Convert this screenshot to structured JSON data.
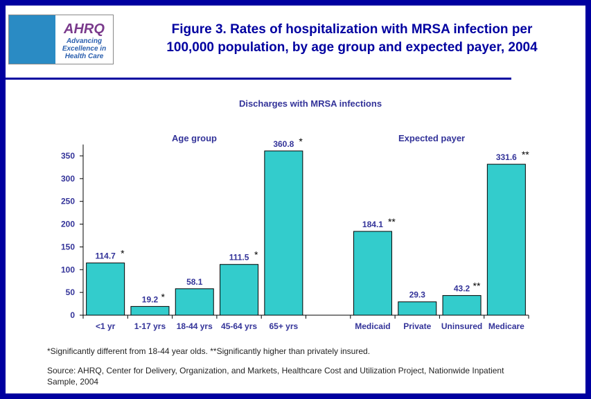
{
  "header": {
    "title_line1": "Figure 3. Rates of hospitalization with MRSA infection per",
    "title_line2": "100,000 population, by age group and expected payer, 2004",
    "logo_text": "AHRQ Advancing Excellence in Health Care",
    "logo_big": "AHRQ",
    "logo_tag": "Advancing Excellence in Health Care"
  },
  "chart_data": {
    "type": "bar",
    "title": "Discharges with MRSA infections",
    "groups": [
      {
        "label": "Age group",
        "categories": [
          "<1 yr",
          "1-17 yrs",
          "18-44 yrs",
          "45-64 yrs",
          "65+ yrs"
        ],
        "values": [
          114.7,
          19.2,
          58.1,
          111.5,
          360.8
        ],
        "labels": [
          "114.7",
          "19.2",
          "58.1",
          "111.5",
          "360.8"
        ],
        "marks": [
          "*",
          "*",
          "",
          "*",
          "*"
        ]
      },
      {
        "label": "Expected payer",
        "categories": [
          "Medicaid",
          "Private",
          "Uninsured",
          "Medicare"
        ],
        "values": [
          184.1,
          29.3,
          43.2,
          331.6
        ],
        "labels": [
          "184.1",
          "29.3",
          "43.2",
          "331.6"
        ],
        "marks": [
          "**",
          "",
          "**",
          "**"
        ]
      }
    ],
    "ylim": [
      0,
      375
    ],
    "yticks": [
      "0",
      "50",
      "100",
      "150",
      "200",
      "250",
      "300",
      "350"
    ],
    "bar_color": "#33cccc"
  },
  "footnote": "*Significantly different from 18-44 year olds.      **Significantly higher than privately insured.",
  "source": "Source: AHRQ, Center for Delivery, Organization, and Markets, Healthcare Cost and Utilization Project, Nationwide Inpatient Sample, 2004"
}
